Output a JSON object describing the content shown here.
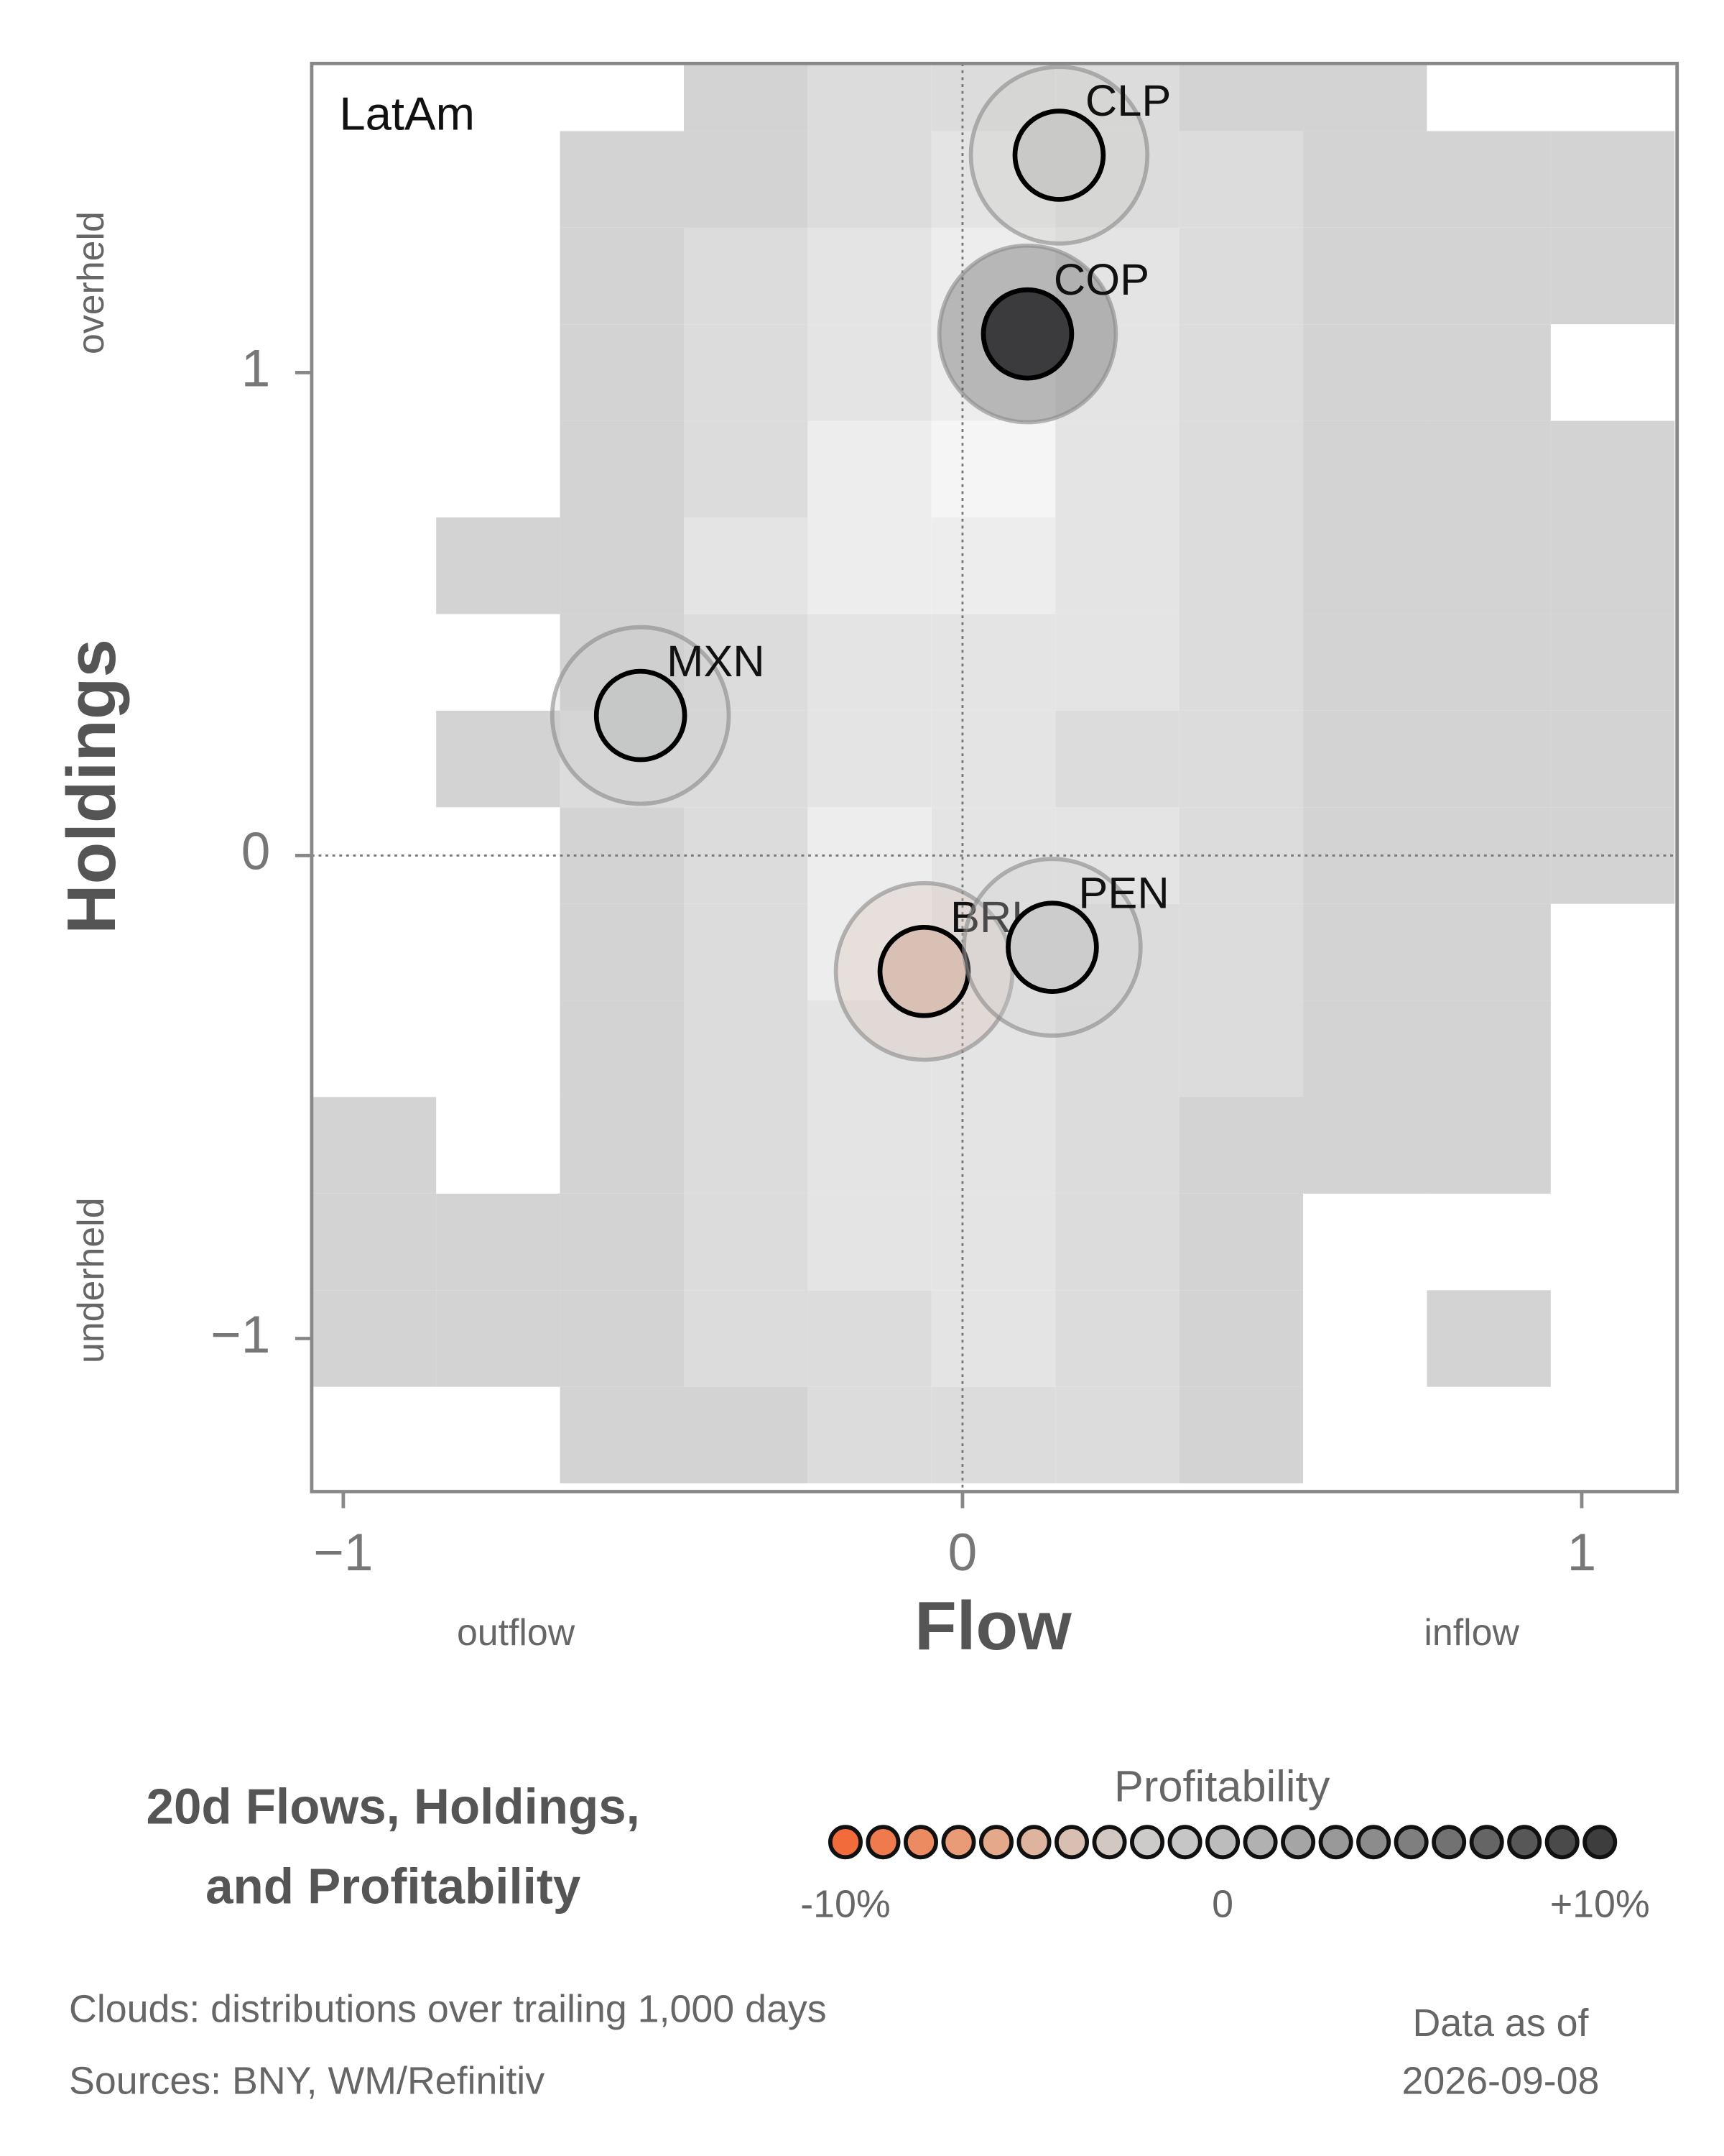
{
  "chart_data": {
    "type": "scatter",
    "panel_label": "LatAm",
    "xlabel": "Flow",
    "ylabel": "Holdings",
    "x_low_label": "outflow",
    "x_high_label": "inflow",
    "y_high_label": "overheld",
    "y_low_label": "underheld",
    "title": [
      "20d Flows, Holdings,",
      "and Profitability"
    ],
    "xlim": [
      -1.051,
      1.154
    ],
    "ylim": [
      -1.317,
      1.64
    ],
    "xticks": [
      {
        "value": -1,
        "label": "−1"
      },
      0,
      1
    ],
    "yticks": [
      {
        "value": -1,
        "label": "−1"
      },
      0,
      1
    ],
    "series": [
      {
        "name": "CLP",
        "color": "#c9c9c7",
        "x": [
          0.156
        ],
        "values": [
          1.45
        ]
      },
      {
        "name": "COP",
        "color": "#3b3b3d",
        "x": [
          0.105
        ],
        "values": [
          1.08
        ]
      },
      {
        "name": "MXN",
        "color": "#c6c8c7",
        "x": [
          -0.52
        ],
        "values": [
          0.29
        ]
      },
      {
        "name": "BRL",
        "color": "#d9c0b5",
        "x": [
          -0.062
        ],
        "values": [
          -0.24
        ]
      },
      {
        "name": "PEN",
        "color": "#cccccc",
        "x": [
          0.145
        ],
        "values": [
          -0.19
        ]
      }
    ],
    "cloud": {
      "xbins": [
        -1.05,
        -0.85,
        -0.65,
        -0.45,
        -0.25,
        -0.05,
        0.15,
        0.35,
        0.55,
        0.75,
        0.95,
        1.15
      ],
      "ybins": [
        -1.3,
        -1.1,
        -0.9,
        -0.7,
        -0.5,
        -0.3,
        -0.1,
        0.1,
        0.3,
        0.5,
        0.7,
        0.9,
        1.1,
        1.3,
        1.5,
        1.7
      ],
      "density": [
        [
          0,
          0,
          1,
          1,
          2,
          2,
          2,
          1,
          0,
          0,
          0
        ],
        [
          1,
          1,
          1,
          2,
          2,
          3,
          2,
          1,
          0,
          1,
          0
        ],
        [
          1,
          1,
          1,
          2,
          3,
          3,
          2,
          1,
          0,
          0,
          0
        ],
        [
          1,
          0,
          1,
          2,
          3,
          3,
          2,
          1,
          1,
          1,
          0
        ],
        [
          0,
          0,
          1,
          2,
          3,
          3,
          2,
          2,
          1,
          1,
          0
        ],
        [
          0,
          0,
          1,
          2,
          4,
          3,
          2,
          2,
          1,
          1,
          0
        ],
        [
          0,
          0,
          1,
          2,
          4,
          3,
          3,
          2,
          1,
          1,
          1
        ],
        [
          0,
          1,
          2,
          2,
          3,
          3,
          2,
          2,
          1,
          1,
          1
        ],
        [
          0,
          0,
          1,
          2,
          3,
          3,
          3,
          2,
          1,
          1,
          1
        ],
        [
          0,
          1,
          1,
          3,
          4,
          4,
          3,
          2,
          1,
          1,
          1
        ],
        [
          0,
          0,
          1,
          2,
          4,
          5,
          3,
          2,
          1,
          1,
          1
        ],
        [
          0,
          0,
          1,
          2,
          3,
          4,
          3,
          2,
          1,
          1,
          0
        ],
        [
          0,
          0,
          1,
          2,
          3,
          4,
          3,
          2,
          1,
          1,
          1
        ],
        [
          0,
          0,
          1,
          1,
          2,
          3,
          2,
          2,
          1,
          1,
          1
        ],
        [
          0,
          0,
          0,
          1,
          2,
          2,
          2,
          1,
          1,
          0,
          0
        ]
      ]
    },
    "colorbar": {
      "title": "Profitability",
      "lim": [
        -10,
        10
      ],
      "colors": [
        "#f26b3a",
        "#ef7a4e",
        "#ec8a62",
        "#e99a77",
        "#e4a88b",
        "#deb49e",
        "#d8bfb2",
        "#d2c8c2",
        "#cccbc9",
        "#c6c6c6",
        "#bcbcbc",
        "#b1b1b1",
        "#a5a5a5",
        "#999999",
        "#8c8c8c",
        "#7f7f7f",
        "#727272",
        "#656565",
        "#575757",
        "#4a4a4a",
        "#3d3d3d"
      ],
      "ticks": [
        {
          "value": -10,
          "label": "-10%"
        },
        0,
        {
          "value": 10,
          "label": "+10%"
        }
      ]
    },
    "footnotes": [
      "Clouds:  distributions over trailing 1,000 days",
      "Sources:  BNY, WM/Refinitiv"
    ],
    "asof_label": "Data as of",
    "asof_date": "2026-09-08"
  }
}
